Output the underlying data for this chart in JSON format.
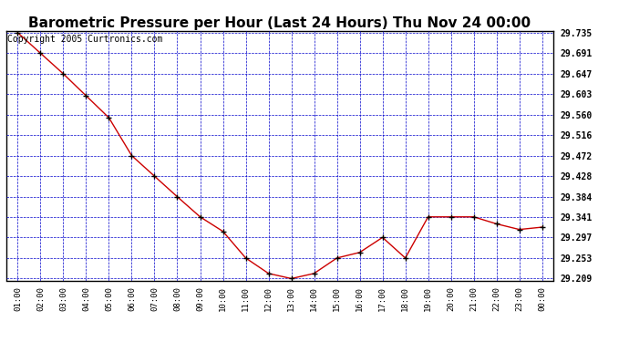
{
  "title": "Barometric Pressure per Hour (Last 24 Hours) Thu Nov 24 00:00",
  "copyright": "Copyright 2005 Curtronics.com",
  "x_labels": [
    "01:00",
    "02:00",
    "03:00",
    "04:00",
    "05:00",
    "06:00",
    "07:00",
    "08:00",
    "09:00",
    "10:00",
    "11:00",
    "12:00",
    "13:00",
    "14:00",
    "15:00",
    "16:00",
    "17:00",
    "18:00",
    "19:00",
    "20:00",
    "21:00",
    "22:00",
    "23:00",
    "00:00"
  ],
  "y_values": [
    29.735,
    29.691,
    29.647,
    29.6,
    29.553,
    29.472,
    29.428,
    29.384,
    29.341,
    29.31,
    29.253,
    29.22,
    29.209,
    29.22,
    29.253,
    29.265,
    29.297,
    29.253,
    29.341,
    29.341,
    29.341,
    29.326,
    29.314,
    29.319
  ],
  "ytick_labels": [
    "29.735",
    "29.691",
    "29.647",
    "29.603",
    "29.560",
    "29.516",
    "29.472",
    "29.428",
    "29.384",
    "29.341",
    "29.297",
    "29.253",
    "29.209"
  ],
  "ytick_values": [
    29.735,
    29.691,
    29.647,
    29.603,
    29.56,
    29.516,
    29.472,
    29.428,
    29.384,
    29.341,
    29.297,
    29.253,
    29.209
  ],
  "ymin": 29.209,
  "ymax": 29.735,
  "line_color": "#cc0000",
  "marker_color": "#000000",
  "bg_color": "#ffffff",
  "grid_color": "#0000cc",
  "title_fontsize": 11,
  "copyright_fontsize": 7,
  "figwidth": 6.9,
  "figheight": 3.75,
  "dpi": 100
}
